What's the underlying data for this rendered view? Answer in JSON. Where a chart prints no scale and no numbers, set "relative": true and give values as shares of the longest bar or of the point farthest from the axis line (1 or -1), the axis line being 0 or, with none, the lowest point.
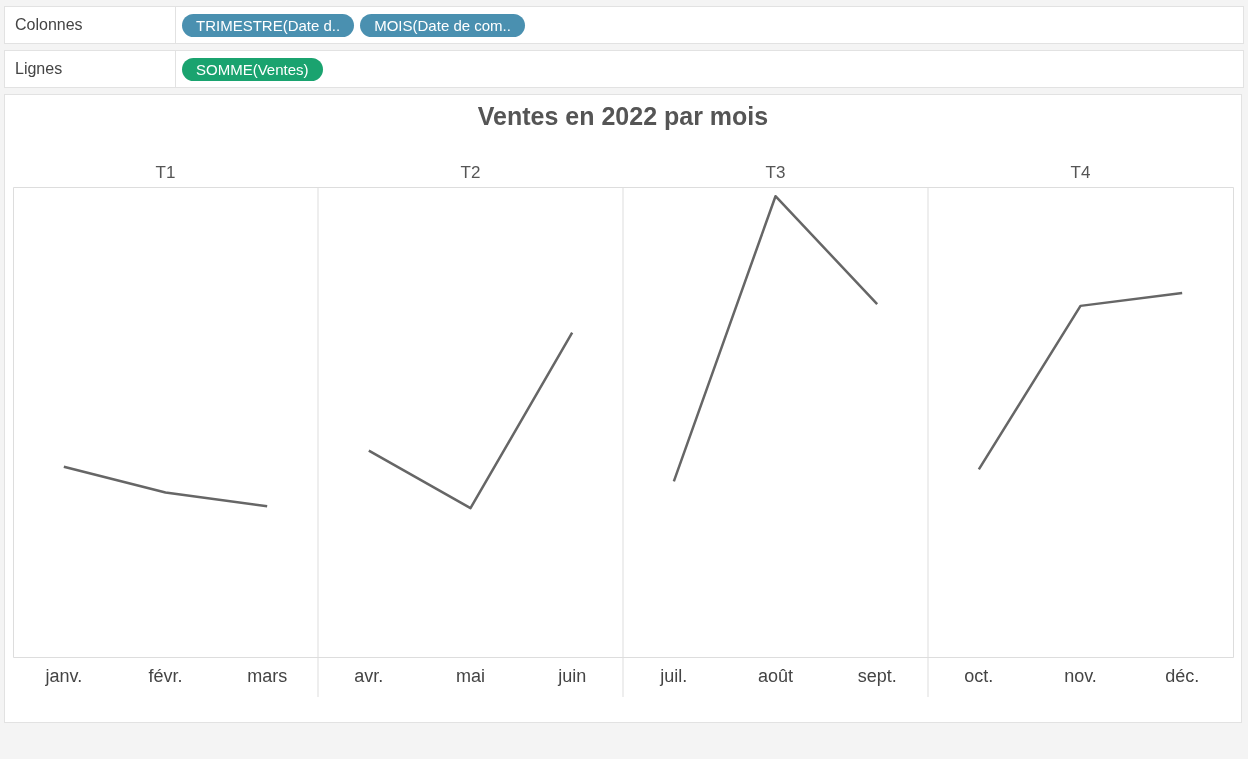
{
  "chart_data": {
    "type": "line",
    "title": "Ventes en 2022 par mois",
    "relative": true,
    "marker": "none",
    "line_style": "solid",
    "categories": [
      "janv.",
      "févr.",
      "mars",
      "avr.",
      "mai",
      "juin",
      "juil.",
      "août",
      "sept.",
      "oct.",
      "nov.",
      "déc."
    ],
    "series": [
      {
        "color": "#666666",
        "values": [
          0.413,
          0.357,
          0.327,
          null,
          null,
          null,
          null,
          null,
          null,
          null,
          null,
          null
        ]
      },
      {
        "color": "#666666",
        "values": [
          null,
          null,
          null,
          0.448,
          0.323,
          0.704,
          null,
          null,
          null,
          null,
          null,
          null
        ]
      },
      {
        "color": "#666666",
        "values": [
          null,
          null,
          null,
          null,
          null,
          null,
          0.381,
          1,
          0.766,
          null,
          null,
          null
        ]
      },
      {
        "color": "#666666",
        "values": [
          null,
          null,
          null,
          null,
          null,
          null,
          null,
          null,
          null,
          0.407,
          0.762,
          0.79
        ]
      }
    ],
    "annotations": [
      "Colonnes",
      "TRIMESTRE(Date d..",
      "MOIS(Date de com..",
      "Lignes",
      "SOMME(Ventes)",
      "T1",
      "T2",
      "T3",
      "T4"
    ]
  }
}
